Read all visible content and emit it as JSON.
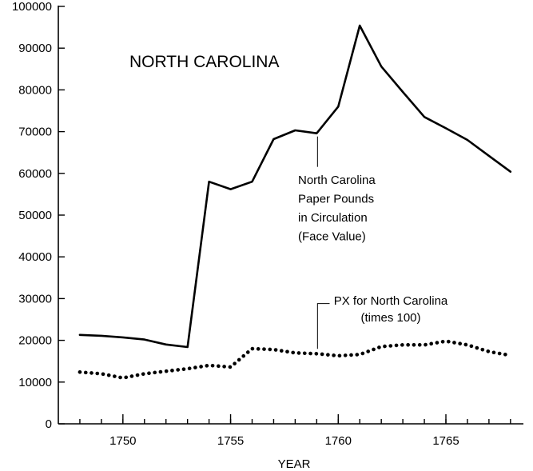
{
  "chart_data": {
    "type": "line",
    "title": "NORTH CAROLINA",
    "xlabel": "YEAR",
    "ylabel": "",
    "xlim": [
      1747,
      1768.6
    ],
    "ylim": [
      0,
      100000
    ],
    "xticks": [
      1750,
      1755,
      1760,
      1765
    ],
    "yticks": [
      0,
      10000,
      20000,
      30000,
      40000,
      50000,
      60000,
      70000,
      80000,
      90000,
      100000
    ],
    "grid": false,
    "legend": "none",
    "series": [
      {
        "style": "solid",
        "color": "#000000",
        "label_lines": [
          "North Carolina",
          "Paper Pounds",
          "in Circulation",
          "(Face Value)"
        ],
        "points": [
          [
            1748,
            21300
          ],
          [
            1749,
            21100
          ],
          [
            1750,
            20700
          ],
          [
            1751,
            20200
          ],
          [
            1752,
            19000
          ],
          [
            1753,
            18400
          ],
          [
            1754,
            58000
          ],
          [
            1755,
            56200
          ],
          [
            1756,
            58000
          ],
          [
            1757,
            68200
          ],
          [
            1758,
            70300
          ],
          [
            1759,
            69600
          ],
          [
            1760,
            76000
          ],
          [
            1761,
            95400
          ],
          [
            1762,
            85600
          ],
          [
            1763,
            79500
          ],
          [
            1764,
            73500
          ],
          [
            1765,
            70800
          ],
          [
            1766,
            68000
          ],
          [
            1767,
            64200
          ],
          [
            1768,
            60400
          ]
        ]
      },
      {
        "style": "dotted",
        "color": "#000000",
        "label_lines": [
          "PX for North Carolina",
          "(times 100)"
        ],
        "points": [
          [
            1748,
            12400
          ],
          [
            1749,
            12000
          ],
          [
            1750,
            11000
          ],
          [
            1751,
            12000
          ],
          [
            1752,
            12600
          ],
          [
            1753,
            13200
          ],
          [
            1754,
            14000
          ],
          [
            1755,
            13600
          ],
          [
            1756,
            18000
          ],
          [
            1757,
            17800
          ],
          [
            1758,
            17000
          ],
          [
            1759,
            16800
          ],
          [
            1760,
            16300
          ],
          [
            1761,
            16600
          ],
          [
            1762,
            18500
          ],
          [
            1763,
            18900
          ],
          [
            1764,
            18900
          ],
          [
            1765,
            19800
          ],
          [
            1766,
            18900
          ],
          [
            1767,
            17300
          ],
          [
            1768,
            16400
          ]
        ]
      }
    ]
  }
}
